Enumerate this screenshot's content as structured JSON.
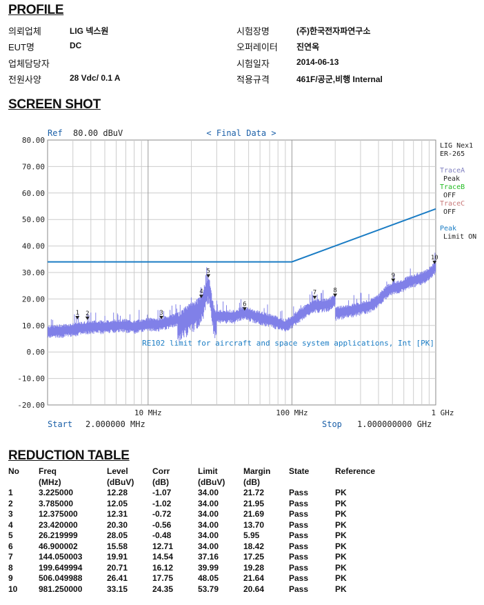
{
  "profile": {
    "title": "PROFILE",
    "left": [
      {
        "key": "의뢰업체",
        "value": "LIG  넥스원"
      },
      {
        "key": "EUT명",
        "value": "DC"
      },
      {
        "key": "업체담당자",
        "value": ""
      },
      {
        "key": "전원사양",
        "value": "28 Vdc/ 0.1 A"
      }
    ],
    "right": [
      {
        "key": "시험장명",
        "value": "(주)한국전자파연구소"
      },
      {
        "key": "오퍼레이터",
        "value": "진연옥"
      },
      {
        "key": "시험일자",
        "value": "2014-06-13"
      },
      {
        "key": "적용규격",
        "value": "461F/공군,비행  Internal"
      }
    ]
  },
  "screenshot": {
    "title": "SCREEN SHOT",
    "ref_label": "Ref",
    "ref_value": "80.00 dBuV",
    "header": "< Final Data >",
    "start_label": "Start",
    "start_value": "2.000000 MHz",
    "stop_label": "Stop",
    "stop_value": "1.000000000 GHz",
    "side": {
      "device": "LIG Nex1",
      "device2": "ER-265",
      "traceA": "TraceA",
      "traceA_mode": "Peak",
      "traceB": "TraceB",
      "traceB_mode": "OFF",
      "traceC": "TraceC",
      "traceC_mode": "OFF",
      "peak": "Peak",
      "limit": "Limit ON"
    },
    "colors": {
      "trace": "#8080e8",
      "limit": "#1a7cc4",
      "traceB": "#22bb22",
      "traceC": "#c87878",
      "grid": "#cccccc"
    }
  },
  "chart_data": {
    "type": "line",
    "x_scale": "log",
    "xlim_mhz": [
      2,
      1000
    ],
    "ylim": [
      -20,
      80
    ],
    "ylabel_unit": "dBuV",
    "y_ticks": [
      "80.00",
      "70.00",
      "60.00",
      "50.00",
      "40.00",
      "30.00",
      "20.00",
      "10.00",
      "0.00",
      "-10.00",
      "-20.00"
    ],
    "x_ticks": [
      {
        "value": 10,
        "label": "10 MHz"
      },
      {
        "value": 100,
        "label": "100 MHz"
      },
      {
        "value": 1000,
        "label": "1 GHz"
      }
    ],
    "limit_line": {
      "label": "RE102 limit for aircraft and space system applications, Int [PK]",
      "x_mhz": [
        2,
        100,
        1000
      ],
      "y": [
        34.0,
        34.0,
        54.0
      ]
    },
    "trace": {
      "name": "TraceA Peak",
      "x_mhz": [
        2,
        3,
        4,
        5,
        6,
        7,
        8,
        9,
        10,
        12,
        14,
        16,
        18,
        20,
        22,
        23.4,
        24.5,
        25.5,
        26.2,
        27,
        28,
        29,
        30,
        35,
        40,
        47,
        55,
        65,
        75,
        90,
        100,
        110,
        125,
        144,
        160,
        180,
        199.6,
        201,
        220,
        250,
        300,
        350,
        400,
        450,
        506,
        550,
        600,
        650,
        700,
        750,
        800,
        850,
        900,
        981,
        1000
      ],
      "y": [
        8,
        9,
        10,
        10,
        10.5,
        10.5,
        10,
        10.5,
        11,
        11,
        12,
        13,
        15,
        17,
        18,
        20,
        23,
        26,
        28,
        24,
        18,
        15,
        14,
        14,
        14,
        15.5,
        14,
        13,
        12,
        10.5,
        12,
        14,
        16,
        18,
        18,
        18.5,
        20,
        15,
        15.5,
        16,
        17,
        18,
        20,
        23,
        25,
        25,
        26,
        27,
        27.5,
        28,
        28.5,
        29,
        30,
        32,
        33
      ]
    },
    "markers": [
      {
        "label": "1",
        "x_mhz": 3.225,
        "y": 12.28
      },
      {
        "label": "2",
        "x_mhz": 3.785,
        "y": 12.05
      },
      {
        "label": "3",
        "x_mhz": 12.375,
        "y": 12.31
      },
      {
        "label": "4",
        "x_mhz": 23.42,
        "y": 20.3
      },
      {
        "label": "5",
        "x_mhz": 26.219999,
        "y": 28.05
      },
      {
        "label": "6",
        "x_mhz": 46.900002,
        "y": 15.58
      },
      {
        "label": "7",
        "x_mhz": 144.050003,
        "y": 19.91
      },
      {
        "label": "8",
        "x_mhz": 199.649994,
        "y": 20.71
      },
      {
        "label": "9",
        "x_mhz": 506.049988,
        "y": 26.41
      },
      {
        "label": "10",
        "x_mhz": 981.25,
        "y": 33.15
      }
    ]
  },
  "reduction": {
    "title": "REDUCTION TABLE",
    "headers": [
      {
        "l1": "No",
        "l2": ""
      },
      {
        "l1": "Freq",
        "l2": "(MHz)"
      },
      {
        "l1": "Level",
        "l2": "(dBuV)"
      },
      {
        "l1": "Corr",
        "l2": "(dB)"
      },
      {
        "l1": "Limit",
        "l2": "(dBuV)"
      },
      {
        "l1": "Margin",
        "l2": "(dB)"
      },
      {
        "l1": "State",
        "l2": ""
      },
      {
        "l1": "Reference",
        "l2": ""
      }
    ],
    "rows": [
      [
        "1",
        "3.225000",
        "12.28",
        "-1.07",
        "34.00",
        "21.72",
        "Pass",
        "PK"
      ],
      [
        "2",
        "3.785000",
        "12.05",
        "-1.02",
        "34.00",
        "21.95",
        "Pass",
        "PK"
      ],
      [
        "3",
        "12.375000",
        "12.31",
        "-0.72",
        "34.00",
        "21.69",
        "Pass",
        "PK"
      ],
      [
        "4",
        "23.420000",
        "20.30",
        "-0.56",
        "34.00",
        "13.70",
        "Pass",
        "PK"
      ],
      [
        "5",
        "26.219999",
        "28.05",
        "-0.48",
        "34.00",
        "5.95",
        "Pass",
        "PK"
      ],
      [
        "6",
        "46.900002",
        "15.58",
        "12.71",
        "34.00",
        "18.42",
        "Pass",
        "PK"
      ],
      [
        "7",
        "144.050003",
        "19.91",
        "14.54",
        "37.16",
        "17.25",
        "Pass",
        "PK"
      ],
      [
        "8",
        "199.649994",
        "20.71",
        "16.12",
        "39.99",
        "19.28",
        "Pass",
        "PK"
      ],
      [
        "9",
        "506.049988",
        "26.41",
        "17.75",
        "48.05",
        "21.64",
        "Pass",
        "PK"
      ],
      [
        "10",
        "981.250000",
        "33.15",
        "24.35",
        "53.79",
        "20.64",
        "Pass",
        "PK"
      ]
    ]
  }
}
